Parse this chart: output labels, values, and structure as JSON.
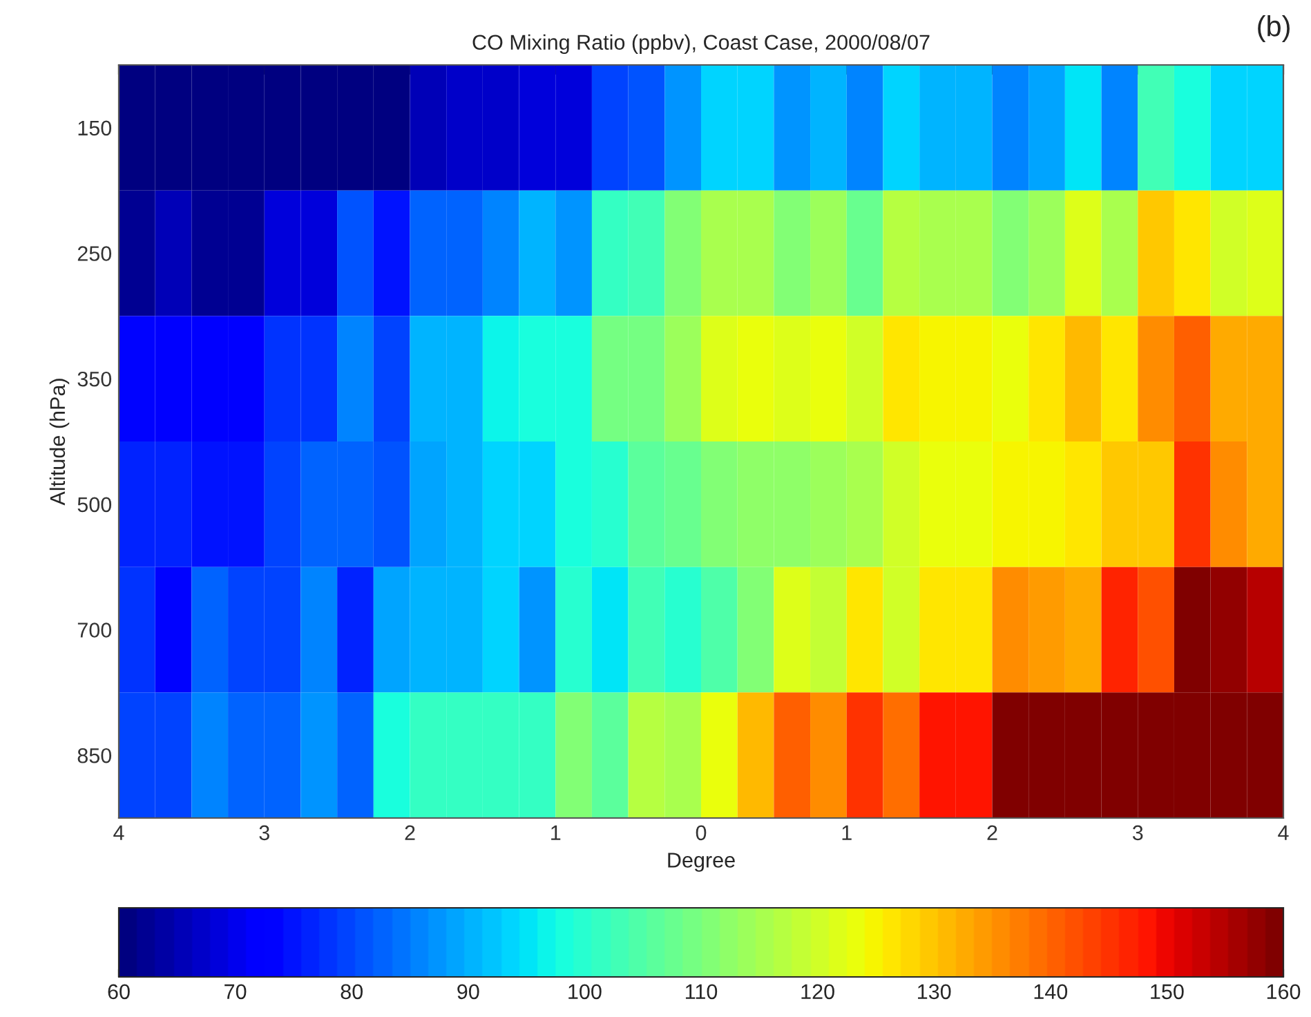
{
  "chart_data": {
    "type": "heatmap",
    "title": "CO Mixing Ratio (ppbv), Coast Case, 2000/08/07",
    "xlabel": "Degree",
    "ylabel": "Altitude (hPa)",
    "annotations": [
      "(b)"
    ],
    "x": [
      -3.875,
      -3.625,
      -3.375,
      -3.125,
      -2.875,
      -2.625,
      -2.375,
      -2.125,
      -1.875,
      -1.625,
      -1.375,
      -1.125,
      -0.875,
      -0.625,
      -0.375,
      -0.125,
      0.125,
      0.375,
      0.625,
      0.875,
      1.125,
      1.375,
      1.625,
      1.875,
      2.125,
      2.375,
      2.625,
      2.875,
      3.125,
      3.375,
      3.625,
      3.875
    ],
    "xlim": [
      -4,
      4
    ],
    "xticks": [
      {
        "value": -4,
        "label": "4"
      },
      {
        "value": -3,
        "label": "3"
      },
      {
        "value": -2,
        "label": "2"
      },
      {
        "value": -1,
        "label": "1"
      },
      0,
      1,
      2,
      3,
      4
    ],
    "y_categories": [
      "150",
      "250",
      "350",
      "500",
      "700",
      "850"
    ],
    "cells": [
      [
        60,
        60,
        60,
        60,
        60,
        60,
        60,
        60,
        65,
        67,
        67,
        68,
        68,
        80,
        81,
        88,
        93,
        93,
        87,
        91,
        85,
        93,
        90,
        90,
        85,
        89,
        95,
        86,
        103,
        98,
        93,
        94
      ],
      [
        62,
        66,
        62,
        63,
        69,
        69,
        81,
        75,
        82,
        82,
        86,
        90,
        88,
        102,
        103,
        110,
        115,
        115,
        110,
        114,
        108,
        117,
        115,
        115,
        110,
        114,
        122,
        115,
        130,
        126,
        120,
        121
      ],
      [
        74,
        72,
        72,
        72,
        78,
        78,
        85,
        80,
        90,
        90,
        96,
        98,
        98,
        109,
        109,
        114,
        121,
        123,
        121,
        123,
        120,
        126,
        125,
        125,
        123,
        126,
        131,
        127,
        135,
        141,
        133,
        133
      ],
      [
        76,
        76,
        75,
        75,
        79,
        82,
        83,
        81,
        89,
        90,
        93,
        93,
        98,
        100,
        106,
        107,
        110,
        112,
        113,
        114,
        116,
        120,
        123,
        123,
        125,
        125,
        126,
        129,
        129,
        145,
        135,
        133
      ],
      [
        78,
        73,
        83,
        80,
        80,
        85,
        76,
        89,
        91,
        91,
        93,
        88,
        100,
        95,
        103,
        100,
        105,
        111,
        121,
        118,
        126,
        120,
        127,
        127,
        135,
        134,
        132,
        146,
        142,
        159,
        158,
        154
      ],
      [
        80,
        79,
        86,
        82,
        82,
        88,
        83,
        98,
        102,
        102,
        102,
        101,
        111,
        106,
        117,
        116,
        123,
        131,
        140,
        135,
        145,
        139,
        149,
        149,
        159,
        159,
        159,
        159,
        159,
        159,
        159,
        159
      ]
    ],
    "clim": [
      60,
      160
    ],
    "cticks": [
      60,
      70,
      80,
      90,
      100,
      110,
      120,
      130,
      140,
      150,
      160
    ]
  }
}
